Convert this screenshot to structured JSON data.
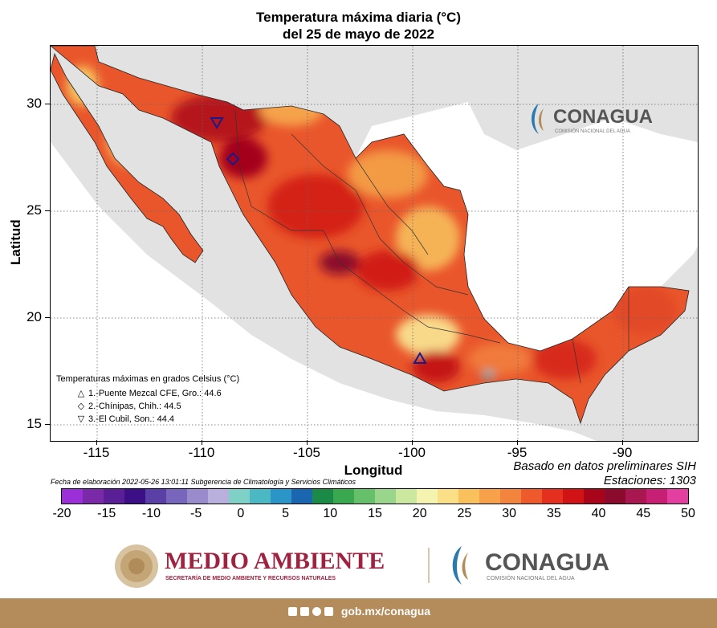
{
  "title_line1": "Temperatura máxima diaria (°C)",
  "title_line2": "del 25 de mayo de 2022",
  "axes": {
    "ylabel": "Latitud",
    "xlabel": "Longitud",
    "yticks": [
      "30",
      "25",
      "20",
      "15"
    ],
    "xticks": [
      "-115",
      "-110",
      "-105",
      "-100",
      "-95",
      "-90"
    ]
  },
  "legend": {
    "heading": "Temperaturas máximas en grados Celsius (°C)",
    "items": [
      {
        "symbol": "△",
        "label": "1.-Puente Mezcal CFE, Gro.: 44.6"
      },
      {
        "symbol": "◇",
        "label": "2.-Chínipas, Chih.: 44.5"
      },
      {
        "symbol": "▽",
        "label": "3.-El Cubil, Son.: 44.4"
      }
    ]
  },
  "source_line1": "Basado en datos preliminares SIH",
  "source_line2": "Estaciones:  1303",
  "fecha": "Fecha de elaboración 2022-05-26 13:01:11 Subgerencia de Climatología y Servicios Climáticos",
  "colorbar": {
    "ticks": [
      "-20",
      "-15",
      "-10",
      "-5",
      "0",
      "5",
      "10",
      "15",
      "20",
      "25",
      "30",
      "35",
      "40",
      "45",
      "50"
    ],
    "colors": [
      "#9b2fd8",
      "#7a2aa8",
      "#5a1f96",
      "#3d0f86",
      "#5a3fa6",
      "#7766bb",
      "#9a8ccc",
      "#b9b0dd",
      "#7fd1c8",
      "#4cb8c4",
      "#2a95c7",
      "#1a66b0",
      "#1b8a46",
      "#3aa84f",
      "#66c06a",
      "#99d58a",
      "#cbe89e",
      "#f4f3b0",
      "#fbdf86",
      "#f9c15c",
      "#f7a24a",
      "#f3843d",
      "#ef5a2c",
      "#e53020",
      "#d11316",
      "#a8051b",
      "#8c0a2c",
      "#a81750",
      "#c61f74",
      "#e23fa0"
    ]
  },
  "map_labels": {
    "conagua_name": "CONAGUA",
    "conagua_sub": "COMISIÓN NACIONAL DEL AGUA"
  },
  "footer": {
    "semarnat_name": "MEDIO AMBIENTE",
    "semarnat_sub": "SECRETARÍA DE MEDIO AMBIENTE Y RECURSOS NATURALES",
    "conagua_name": "CONAGUA",
    "conagua_sub": "COMISIÓN NACIONAL DEL AGUA",
    "url": "gob.mx/conagua"
  },
  "colors": {
    "brand_maroon": "#9f2241",
    "brand_gold": "#b48b5a",
    "conagua_grey": "#555555"
  }
}
